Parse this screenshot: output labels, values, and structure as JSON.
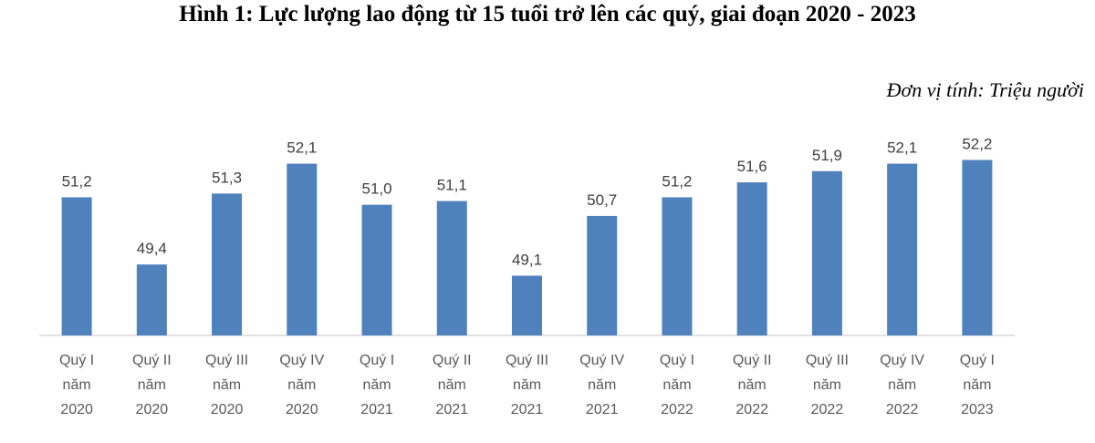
{
  "header": {
    "title": "Hình 1: Lực lượng lao động từ 15 tuổi trở lên các quý, giai đoạn 2020 - 2023",
    "unit": "Đơn vị tính: Triệu người"
  },
  "chart_data": {
    "type": "bar",
    "title": "Hình 1: Lực lượng lao động từ 15 tuổi trở lên các quý, giai đoạn 2020 - 2023",
    "ylabel": "",
    "xlabel": "",
    "unit": "Đơn vị tính: Triệu người",
    "ylim": [
      47.5,
      52.7
    ],
    "grid": false,
    "bar_color": "#4f81bd",
    "categories": [
      [
        "Quý I",
        "năm",
        "2020"
      ],
      [
        "Quý II",
        "năm",
        "2020"
      ],
      [
        "Quý III",
        "năm",
        "2020"
      ],
      [
        "Quý IV",
        "năm",
        "2020"
      ],
      [
        "Quý I",
        "năm",
        "2021"
      ],
      [
        "Quý II",
        "năm",
        "2021"
      ],
      [
        "Quý III",
        "năm",
        "2021"
      ],
      [
        "Quý IV",
        "năm",
        "2021"
      ],
      [
        "Quý I",
        "năm",
        "2022"
      ],
      [
        "Quý II",
        "năm",
        "2022"
      ],
      [
        "Quý III",
        "năm",
        "2022"
      ],
      [
        "Quý IV",
        "năm",
        "2022"
      ],
      [
        "Quý I",
        "năm",
        "2023"
      ]
    ],
    "values": [
      51.2,
      49.4,
      51.3,
      52.1,
      51.0,
      51.1,
      49.1,
      50.7,
      51.2,
      51.6,
      51.9,
      52.1,
      52.2
    ],
    "value_labels": [
      "51,2",
      "49,4",
      "51,3",
      "52,1",
      "51,0",
      "51,1",
      "49,1",
      "50,7",
      "51,2",
      "51,6",
      "51,9",
      "52,1",
      "52,2"
    ]
  }
}
